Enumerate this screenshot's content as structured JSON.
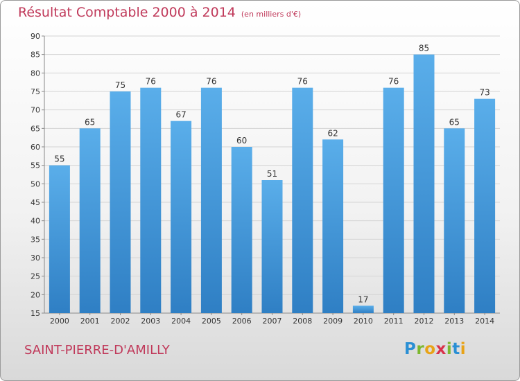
{
  "chart_data": {
    "type": "bar",
    "title": "Résultat Comptable 2000 à 2014",
    "subtitle": "(en milliers d'€)",
    "categories": [
      "2000",
      "2001",
      "2002",
      "2003",
      "2004",
      "2005",
      "2006",
      "2007",
      "2008",
      "2009",
      "2010",
      "2011",
      "2012",
      "2013",
      "2014"
    ],
    "values": [
      55,
      65,
      75,
      76,
      67,
      76,
      60,
      51,
      76,
      62,
      17,
      76,
      85,
      65,
      73
    ],
    "ylim": [
      15,
      90
    ],
    "yticks": [
      15,
      20,
      25,
      30,
      35,
      40,
      45,
      50,
      55,
      60,
      65,
      70,
      75,
      80,
      85,
      90
    ],
    "grid": true,
    "bar_color": "#4a9de0",
    "accent_color": "#c0395a"
  },
  "footer": {
    "commune": "SAINT-PIERRE-D'AMILLY",
    "logo": [
      "P",
      "r",
      "o",
      "x",
      "i",
      "t",
      "i"
    ],
    "logo_colors": [
      "#2a8fd4",
      "#7cb82f",
      "#e8a317",
      "#d9304a",
      "#7cb82f",
      "#2a8fd4",
      "#e8a317"
    ]
  }
}
